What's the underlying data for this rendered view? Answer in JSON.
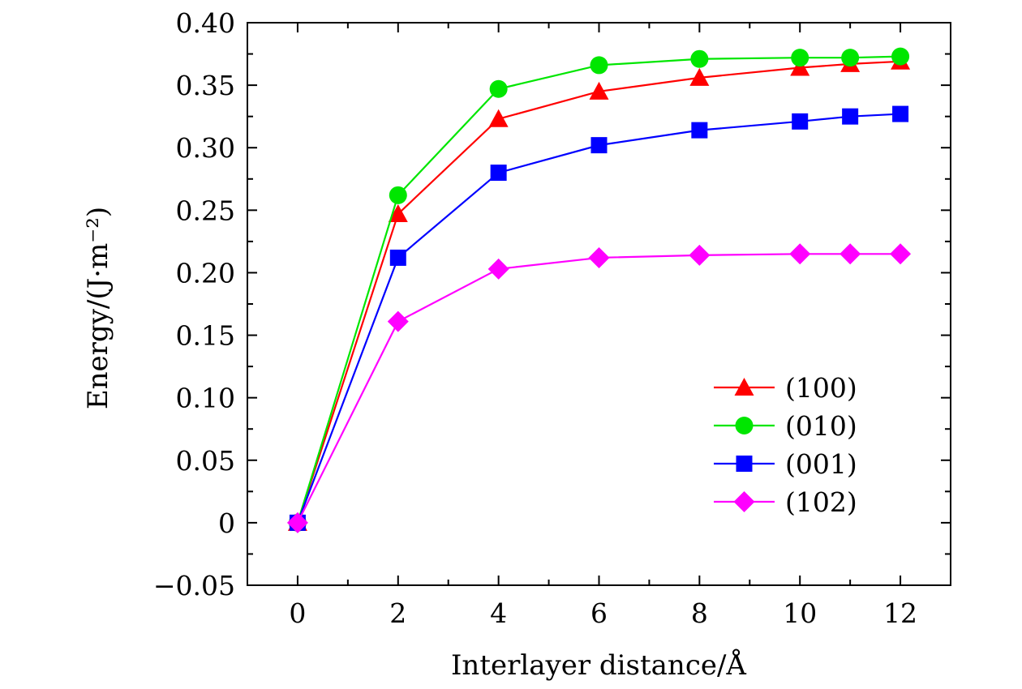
{
  "chart_data": {
    "type": "line",
    "title": "",
    "xlabel": "Interlayer distance/Å",
    "ylabel": "Energy/(J·m⁻²)",
    "xlim": [
      -1,
      13
    ],
    "ylim": [
      -0.05,
      0.4
    ],
    "xticks": [
      0,
      2,
      4,
      6,
      8,
      10,
      12
    ],
    "xtick_labels": [
      "0",
      "2",
      "4",
      "6",
      "8",
      "10",
      "12"
    ],
    "yticks": [
      -0.05,
      0,
      0.05,
      0.1,
      0.15,
      0.2,
      0.25,
      0.3,
      0.35,
      0.4
    ],
    "ytick_labels": [
      "−0.05",
      "0",
      "0.05",
      "0.10",
      "0.15",
      "0.20",
      "0.25",
      "0.30",
      "0.35",
      "0.40"
    ],
    "grid": false,
    "legend_position": "lower-right",
    "x": [
      0,
      2,
      4,
      6,
      8,
      10,
      11,
      12
    ],
    "series": [
      {
        "name": "(100)",
        "color": "#ff0000",
        "marker": "triangle",
        "values": [
          0,
          0.247,
          0.323,
          0.345,
          0.356,
          0.364,
          0.367,
          0.369
        ]
      },
      {
        "name": "(010)",
        "color": "#00e600",
        "marker": "circle",
        "values": [
          0,
          0.262,
          0.347,
          0.366,
          0.371,
          0.372,
          0.372,
          0.373
        ]
      },
      {
        "name": "(001)",
        "color": "#0000ff",
        "marker": "square",
        "values": [
          0,
          0.212,
          0.28,
          0.302,
          0.314,
          0.321,
          0.325,
          0.327
        ]
      },
      {
        "name": "(102)",
        "color": "#ff00ff",
        "marker": "diamond",
        "values": [
          0,
          0.161,
          0.203,
          0.212,
          0.214,
          0.215,
          0.215,
          0.215
        ]
      }
    ]
  }
}
